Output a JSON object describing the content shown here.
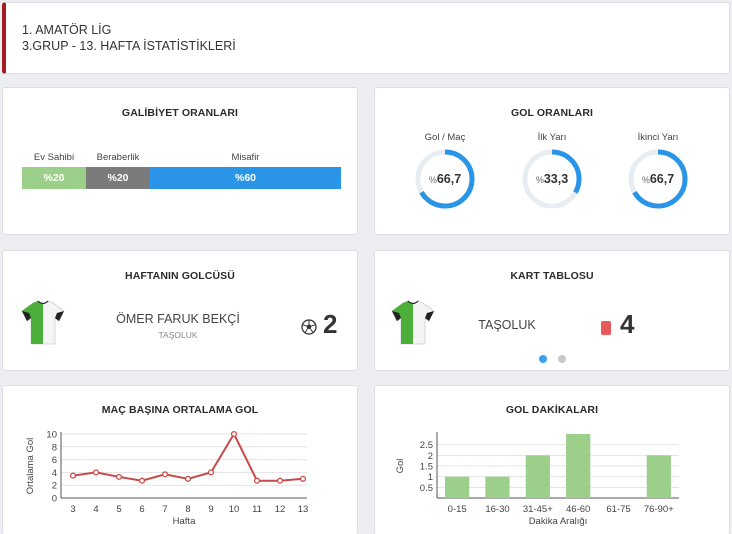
{
  "header": {
    "league": "1. AMATÖR LİG",
    "subtitle": "3.GRUP - 13. HAFTA İSTATİSTİKLERİ"
  },
  "win_rates": {
    "title": "GALİBİYET ORANLARI",
    "items": [
      {
        "label": "Ev Sahibi",
        "value": "%20",
        "share": 20,
        "color": "#9ccf8a"
      },
      {
        "label": "Beraberlik",
        "value": "%20",
        "share": 20,
        "color": "#7b7b7b"
      },
      {
        "label": "Misafir",
        "value": "%60",
        "share": 60,
        "color": "#2a95e6"
      }
    ]
  },
  "goal_rates": {
    "title": "GOL ORANLARI",
    "pct_sign": "%",
    "items": [
      {
        "label": "Gol / Maç",
        "value": "66,7",
        "fraction": 0.667
      },
      {
        "label": "İlk Yarı",
        "value": "33,3",
        "fraction": 0.333
      },
      {
        "label": "İkinci Yarı",
        "value": "66,7",
        "fraction": 0.667
      }
    ],
    "ring_color": "#2a95e6",
    "track_color": "#e8edf2"
  },
  "top_scorer": {
    "title": "HAFTANIN GOLCÜSÜ",
    "player": "ÖMER FARUK BEKÇİ",
    "team": "TAŞOLUK",
    "goals": "2",
    "icon": "soccer-ball-icon"
  },
  "card_table": {
    "title": "KART TABLOSU",
    "team": "TAŞOLUK",
    "count": "4",
    "card_color": "#e85a5a",
    "icon": "red-card-icon",
    "pagination": {
      "pages": 2,
      "active": 1
    }
  },
  "chart_data": [
    {
      "type": "line",
      "title": "MAÇ BAŞINA ORTALAMA GOL",
      "xlabel": "Hafta",
      "ylabel": "Ortalama Gol",
      "x": [
        3,
        4,
        5,
        6,
        7,
        8,
        9,
        10,
        11,
        12,
        13
      ],
      "series": [
        {
          "values": [
            3.5,
            4,
            3.3,
            2.7,
            3.7,
            3,
            4,
            10,
            2.7,
            2.7,
            3
          ],
          "color": "#c94a4a"
        }
      ],
      "ylim": [
        0,
        10
      ],
      "yticks": [
        0,
        2,
        4,
        6,
        8,
        10
      ],
      "grid": true
    },
    {
      "type": "bar",
      "title": "GOL DAKİKALARI",
      "xlabel": "Dakika Aralığı",
      "ylabel": "Gol",
      "categories": [
        "0-15",
        "16-30",
        "31-45+",
        "46-60",
        "61-75",
        "76-90+"
      ],
      "values": [
        1,
        1,
        2,
        3,
        0,
        2
      ],
      "color": "#9ccf8a",
      "ylim": [
        0,
        3
      ],
      "yticks": [
        0.5,
        1,
        1.5,
        2,
        2.5
      ],
      "grid": true
    }
  ]
}
